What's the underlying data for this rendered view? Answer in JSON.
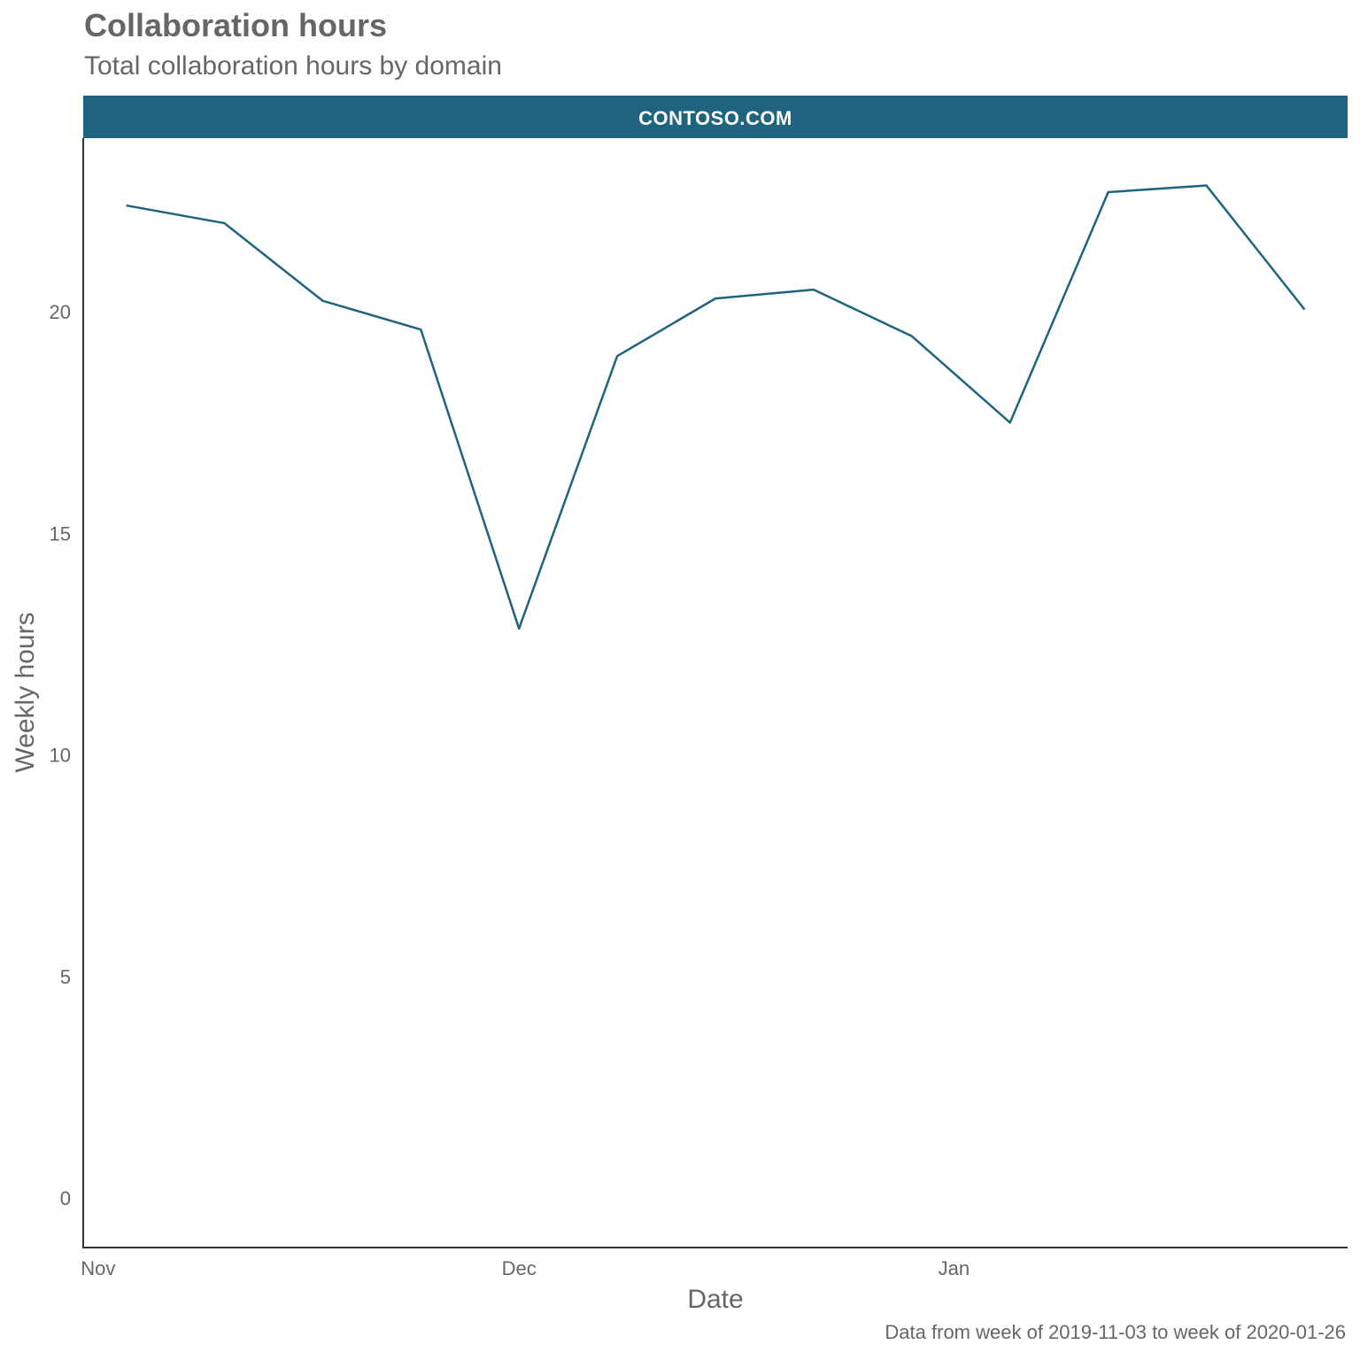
{
  "chart_data": {
    "type": "line",
    "title": "Collaboration hours",
    "subtitle": "Total collaboration hours by domain",
    "caption": "Data from week of 2019-11-03 to week of 2020-01-26",
    "facet_label": "CONTOSO.COM",
    "xlabel": "Date",
    "ylabel": "Weekly hours",
    "x": [
      "2019-11-03",
      "2019-11-10",
      "2019-11-17",
      "2019-11-24",
      "2019-12-01",
      "2019-12-08",
      "2019-12-15",
      "2019-12-22",
      "2019-12-29",
      "2020-01-05",
      "2020-01-12",
      "2020-01-19",
      "2020-01-26"
    ],
    "series": [
      {
        "values": [
          22.4,
          22.0,
          20.25,
          19.6,
          12.85,
          19.0,
          20.3,
          20.5,
          19.45,
          17.5,
          22.7,
          22.85,
          20.05
        ]
      }
    ],
    "xticks": [
      {
        "date": "2019-11-01",
        "label": "Nov"
      },
      {
        "date": "2019-12-01",
        "label": "Dec"
      },
      {
        "date": "2020-01-01",
        "label": "Jan"
      }
    ],
    "yticks": [
      0,
      5,
      10,
      15,
      20
    ],
    "ylim": [
      -1.1,
      23.9
    ],
    "xlim": [
      "2019-10-31",
      "2020-01-29"
    ],
    "grid": false,
    "line_color": "#1f637f",
    "strip_color": "#1f637f"
  }
}
